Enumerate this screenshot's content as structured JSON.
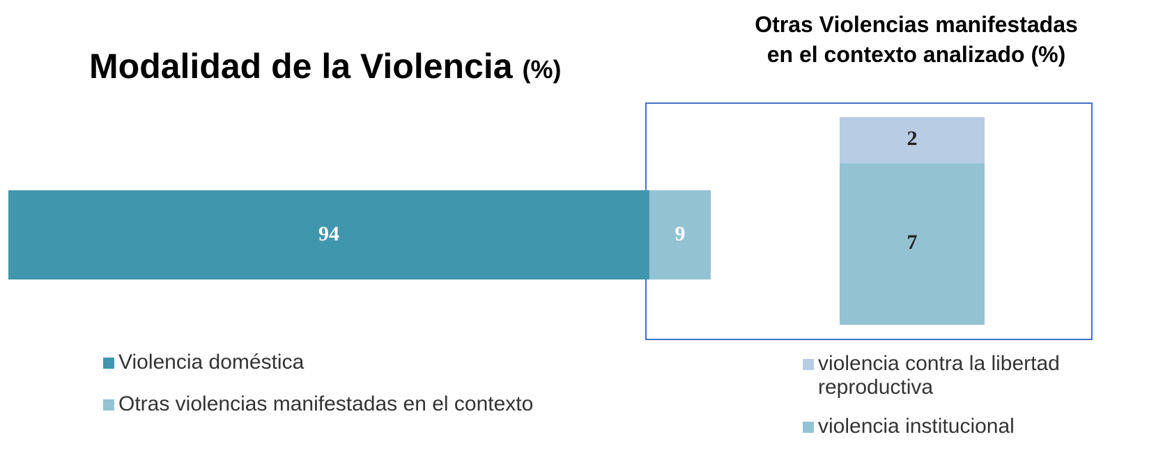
{
  "chart_data": [
    {
      "type": "bar",
      "orientation": "horizontal",
      "stacked": true,
      "title": "Modalidad de la Violencia",
      "title_unit": "(%)",
      "series": [
        {
          "name": "Violencia doméstica",
          "color": "#4096ad",
          "values": [
            94
          ]
        },
        {
          "name": "Otras violencias manifestadas en el contexto",
          "color": "#93c3d3",
          "values": [
            9
          ]
        }
      ]
    },
    {
      "type": "bar",
      "orientation": "vertical",
      "stacked": true,
      "title": "Otras Violencias manifestadas en el contexto analizado (%)",
      "series": [
        {
          "name": "violencia institucional",
          "color": "#93c3d3",
          "values": [
            7
          ]
        },
        {
          "name": "violencia contra la libertad reproductiva",
          "color": "#b8cce4",
          "values": [
            2
          ]
        }
      ]
    }
  ]
}
